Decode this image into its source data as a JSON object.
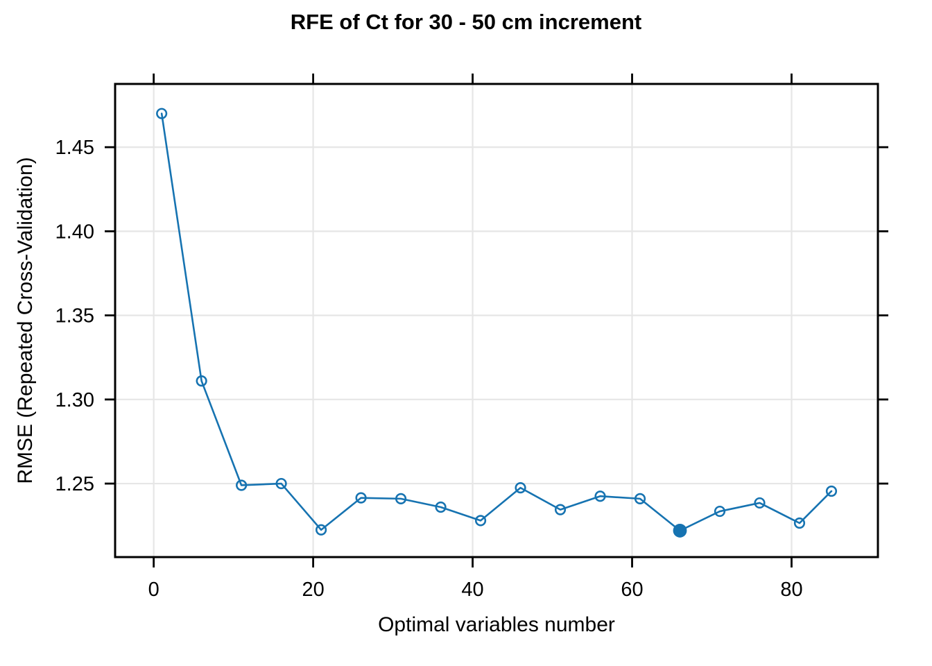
{
  "page": {
    "background": "#ffffff"
  },
  "chart_data": {
    "type": "line",
    "title": "RFE of Ct for 30 - 50 cm increment",
    "xlabel": "Optimal variables number",
    "ylabel": "RMSE (Repeated Cross-Validation)",
    "series": [
      {
        "name": "RMSE (Repeated Cross-Validation)",
        "x": [
          1,
          6,
          11,
          16,
          21,
          26,
          31,
          36,
          41,
          46,
          51,
          56,
          61,
          66,
          71,
          76,
          81,
          85
        ],
        "y": [
          1.47,
          1.311,
          1.249,
          1.25,
          1.2225,
          1.2415,
          1.241,
          1.236,
          1.228,
          1.2475,
          1.2345,
          1.2425,
          1.241,
          1.222,
          1.2335,
          1.2385,
          1.2265,
          1.2455
        ]
      }
    ],
    "best_point": {
      "x": 66,
      "y": 1.222,
      "marker": "filled-circle"
    },
    "marker": "open-circle",
    "xticks": [
      0,
      20,
      40,
      60,
      80
    ],
    "xtick_labels": [
      "0",
      "20",
      "40",
      "60",
      "80"
    ],
    "yticks": [
      1.25,
      1.3,
      1.35,
      1.4,
      1.45
    ],
    "ytick_labels": [
      "1.25",
      "1.30",
      "1.35",
      "1.40",
      "1.45"
    ],
    "xlim": [
      -4.84,
      90.83
    ],
    "ylim": [
      1.2063,
      1.4876
    ],
    "grid": true,
    "legend_position": "none",
    "colors": {
      "line": "#1673B1",
      "marker": "#1673B1",
      "grid": "#E6E6E6",
      "axis": "#000000",
      "text": "#000000",
      "background": "#FFFFFF"
    }
  }
}
